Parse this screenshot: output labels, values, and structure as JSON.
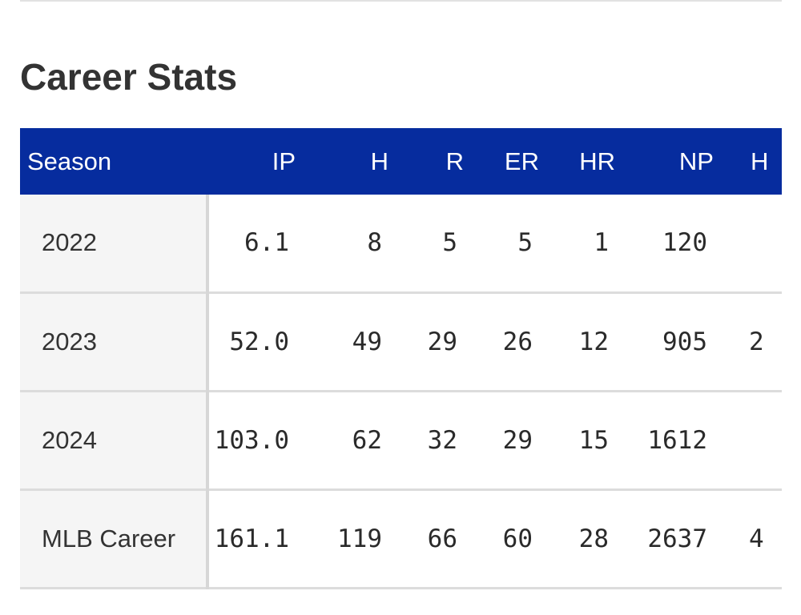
{
  "section": {
    "title": "Career Stats"
  },
  "table": {
    "columns": [
      "Season",
      "IP",
      "H",
      "R",
      "ER",
      "HR",
      "NP",
      "H"
    ],
    "rows": [
      {
        "season": "2022",
        "ip": "6.1",
        "h": "8",
        "r": "5",
        "er": "5",
        "hr": "1",
        "np": "120",
        "extra": ""
      },
      {
        "season": "2023",
        "ip": "52.0",
        "h": "49",
        "r": "29",
        "er": "26",
        "hr": "12",
        "np": "905",
        "extra": "2"
      },
      {
        "season": "2024",
        "ip": "103.0",
        "h": "62",
        "r": "32",
        "er": "29",
        "hr": "15",
        "np": "1612",
        "extra": ""
      },
      {
        "season": "MLB Career",
        "ip": "161.1",
        "h": "119",
        "r": "66",
        "er": "60",
        "hr": "28",
        "np": "2637",
        "extra": "4"
      }
    ]
  },
  "colors": {
    "header_background": "#062c9e",
    "header_text": "#ffffff",
    "season_cell_background": "#f5f5f5",
    "title_text": "#333333"
  }
}
